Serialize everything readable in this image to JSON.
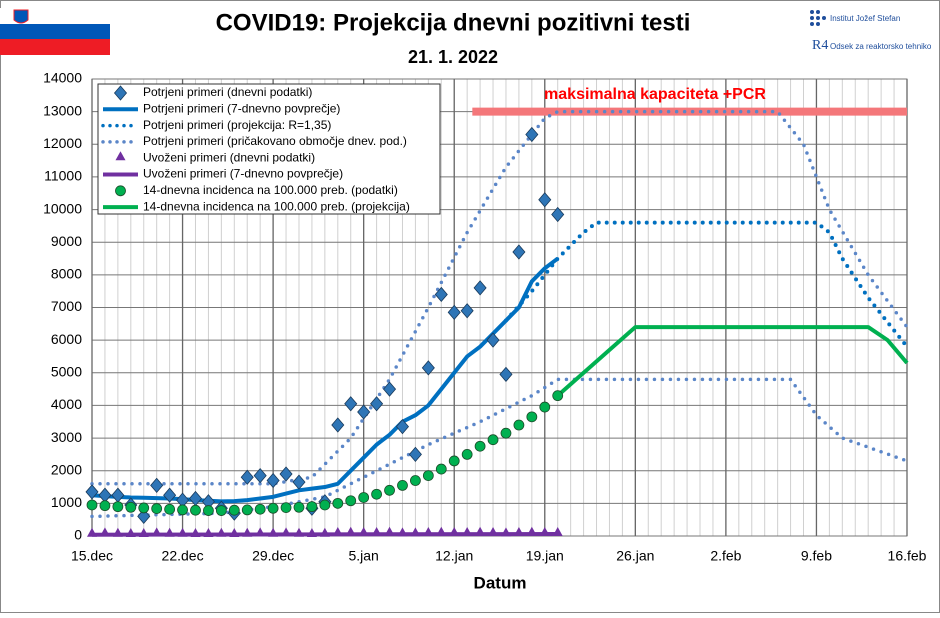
{
  "header": {
    "institute": "Institut Jožef Stefan",
    "department": "Odsek za reaktorsko tehniko"
  },
  "chart_data": {
    "type": "line",
    "title": "COVID19: Projekcija dnevni pozitivni testi",
    "subtitle": "21. 1. 2022",
    "x_label": "Datum",
    "xlim": [
      0,
      63
    ],
    "xticks": [
      {
        "value": 0,
        "label": "15.dec"
      },
      {
        "value": 7,
        "label": "22.dec"
      },
      {
        "value": 14,
        "label": "29.dec"
      },
      {
        "value": 21,
        "label": "5.jan"
      },
      {
        "value": 28,
        "label": "12.jan"
      },
      {
        "value": 35,
        "label": "19.jan"
      },
      {
        "value": 42,
        "label": "26.jan"
      },
      {
        "value": 49,
        "label": "2.feb"
      },
      {
        "value": 56,
        "label": "9.feb"
      },
      {
        "value": 63,
        "label": "16.feb"
      }
    ],
    "ylim": [
      0,
      14000
    ],
    "yticks": [
      0,
      1000,
      2000,
      3000,
      4000,
      5000,
      6000,
      7000,
      8000,
      9000,
      10000,
      11000,
      12000,
      13000,
      14000
    ],
    "grid": true,
    "legend": "top-left",
    "capacity": {
      "label": "maksimalna  kapaciteta  +PCR",
      "value": 13000,
      "x": [
        29.4,
        63
      ],
      "color": "#f4777a"
    },
    "series": [
      {
        "name": "Potrjeni primeri (dnevni podatki)",
        "style": "marker",
        "marker": "diamond",
        "color": "#2e75b6",
        "x": [
          0,
          1,
          2,
          3,
          4,
          5,
          6,
          7,
          8,
          9,
          10,
          11,
          12,
          13,
          14,
          15,
          16,
          17,
          18,
          19,
          20,
          21,
          22,
          23,
          24,
          25,
          26,
          27,
          28,
          29,
          30,
          31,
          32,
          33,
          34,
          35,
          36
        ],
        "values": [
          1350,
          1250,
          1250,
          950,
          600,
          1550,
          1250,
          1100,
          1150,
          1050,
          850,
          700,
          1800,
          1850,
          1700,
          1900,
          1650,
          850,
          1050,
          3400,
          4050,
          3800,
          4050,
          4500,
          3350,
          2500,
          5150,
          7400,
          6850,
          6900,
          7600,
          6000,
          4950,
          8700,
          12300,
          10300,
          9850
        ]
      },
      {
        "name": "Potrjeni primeri (7-dnevno povprečje)",
        "style": "line",
        "color": "#0070c0",
        "x": [
          0,
          1,
          2,
          3,
          4,
          5,
          6,
          7,
          8,
          9,
          10,
          11,
          12,
          13,
          14,
          15,
          16,
          17,
          18,
          19,
          20,
          21,
          22,
          23,
          24,
          25,
          26,
          27,
          28,
          29,
          30,
          31,
          32,
          33,
          34,
          35,
          36
        ],
        "values": [
          1250,
          1220,
          1200,
          1180,
          1170,
          1160,
          1150,
          1130,
          1100,
          1080,
          1060,
          1070,
          1100,
          1150,
          1200,
          1300,
          1400,
          1450,
          1500,
          1600,
          2000,
          2400,
          2800,
          3100,
          3500,
          3700,
          4000,
          4500,
          5000,
          5500,
          5800,
          6200,
          6600,
          7000,
          7800,
          8200,
          8500
        ]
      },
      {
        "name": "Potrjeni primeri (projekcija: R=1,35)",
        "style": "dotted",
        "color": "#0070c0",
        "x": [
          32,
          34,
          36,
          38,
          39,
          40,
          56,
          57,
          58,
          60,
          63
        ],
        "values": [
          6600,
          7500,
          8500,
          9300,
          9600,
          9600,
          9600,
          9300,
          8500,
          7300,
          5800
        ]
      },
      {
        "name": "Potrjeni primeri (pričakovano območje dnev. pod.)",
        "style": "range",
        "color": "#5b86c8",
        "x": [
          0,
          10,
          14,
          18,
          22,
          26,
          30,
          34,
          36,
          54,
          56,
          58,
          63
        ],
        "values": [
          600,
          700,
          900,
          1200,
          2000,
          2800,
          3500,
          4300,
          4800,
          4800,
          3700,
          3000,
          2300
        ],
        "upper": {
          "x": [
            0,
            14,
            17,
            20,
            23,
            26,
            29,
            32,
            35,
            36,
            53,
            55,
            57,
            60,
            63
          ],
          "values": [
            1600,
            1600,
            1800,
            3000,
            4800,
            7000,
            9300,
            11300,
            12800,
            13000,
            13000,
            12000,
            10000,
            8000,
            6400
          ]
        }
      },
      {
        "name": "Uvoženi primeri (dnevni podatki)",
        "style": "marker",
        "marker": "triangle",
        "color": "#7030a0",
        "x": [
          0,
          1,
          2,
          3,
          4,
          5,
          6,
          7,
          8,
          9,
          10,
          11,
          12,
          13,
          14,
          15,
          16,
          17,
          18,
          19,
          20,
          21,
          22,
          23,
          24,
          25,
          26,
          27,
          28,
          29,
          30,
          31,
          32,
          33,
          34,
          35,
          36
        ],
        "values": [
          40,
          50,
          40,
          30,
          30,
          50,
          40,
          40,
          30,
          30,
          40,
          30,
          40,
          50,
          40,
          50,
          40,
          30,
          40,
          60,
          70,
          60,
          60,
          70,
          50,
          50,
          60,
          70,
          60,
          60,
          70,
          60,
          50,
          60,
          70,
          60,
          60
        ]
      },
      {
        "name": "Uvoženi primeri (7-dnevno povprečje)",
        "style": "line",
        "color": "#7030a0",
        "x": [
          0,
          36
        ],
        "values": [
          40,
          60
        ]
      },
      {
        "name": "14-dnevna incidenca na 100.000 preb. (podatki)",
        "style": "marker",
        "marker": "circle",
        "color": "#00b050",
        "x": [
          0,
          1,
          2,
          3,
          4,
          5,
          6,
          7,
          8,
          9,
          10,
          11,
          12,
          13,
          14,
          15,
          16,
          17,
          18,
          19,
          20,
          21,
          22,
          23,
          24,
          25,
          26,
          27,
          28,
          29,
          30,
          31,
          32,
          33,
          34,
          35,
          36
        ],
        "values": [
          950,
          930,
          900,
          880,
          860,
          840,
          820,
          800,
          790,
          780,
          780,
          790,
          800,
          820,
          850,
          870,
          880,
          900,
          950,
          1000,
          1080,
          1180,
          1280,
          1400,
          1550,
          1700,
          1850,
          2050,
          2300,
          2500,
          2750,
          2950,
          3150,
          3400,
          3650,
          3950,
          4300
        ]
      },
      {
        "name": "14-dnevna incidenca na 100.000 preb. (projekcija)",
        "style": "line",
        "color": "#00b050",
        "x": [
          36,
          42,
          60,
          61.5,
          63
        ],
        "values": [
          4300,
          6400,
          6400,
          6000,
          5300
        ]
      }
    ]
  }
}
